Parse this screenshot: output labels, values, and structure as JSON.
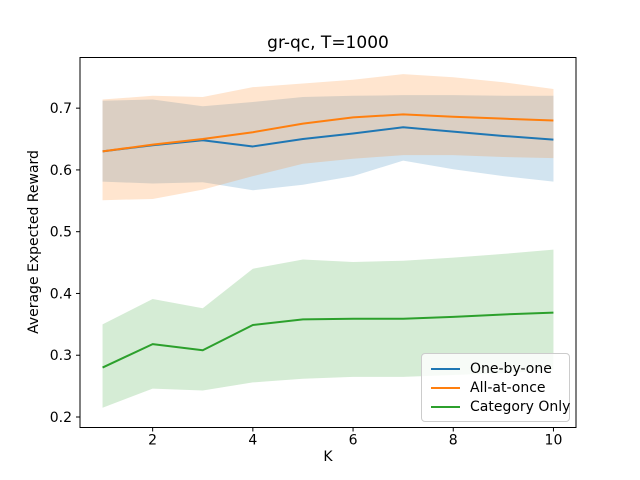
{
  "chart_data": {
    "type": "line",
    "title": "gr-qc, T=1000",
    "xlabel": "K",
    "ylabel": "Average Expected Reward",
    "grid": false,
    "legend_position": "lower right",
    "band_opacity": 0.2,
    "x": [
      1,
      2,
      3,
      4,
      5,
      6,
      7,
      8,
      9,
      10
    ],
    "xticks": [
      2,
      4,
      6,
      8,
      10
    ],
    "yticks": [
      0.2,
      0.3,
      0.4,
      0.5,
      0.6,
      0.7
    ],
    "xlim": [
      0.55,
      10.45
    ],
    "ylim": [
      0.183,
      0.782
    ],
    "series": [
      {
        "name": "One-by-one",
        "color": "#1f77b4",
        "values": [
          0.63,
          0.64,
          0.648,
          0.638,
          0.65,
          0.659,
          0.669,
          0.662,
          0.655,
          0.649
        ],
        "band_upper": [
          0.712,
          0.714,
          0.703,
          0.71,
          0.718,
          0.72,
          0.721,
          0.721,
          0.72,
          0.72
        ],
        "band_lower": [
          0.581,
          0.578,
          0.58,
          0.567,
          0.576,
          0.59,
          0.615,
          0.601,
          0.59,
          0.581
        ]
      },
      {
        "name": "All-at-once",
        "color": "#ff7f0e",
        "values": [
          0.63,
          0.641,
          0.65,
          0.661,
          0.675,
          0.685,
          0.69,
          0.686,
          0.683,
          0.68
        ],
        "band_upper": [
          0.714,
          0.72,
          0.718,
          0.734,
          0.74,
          0.746,
          0.755,
          0.75,
          0.742,
          0.731
        ],
        "band_lower": [
          0.551,
          0.553,
          0.568,
          0.59,
          0.61,
          0.618,
          0.624,
          0.624,
          0.621,
          0.619
        ]
      },
      {
        "name": "Category Only",
        "color": "#2ca02c",
        "values": [
          0.28,
          0.318,
          0.308,
          0.349,
          0.358,
          0.359,
          0.359,
          0.362,
          0.366,
          0.369
        ],
        "band_upper": [
          0.35,
          0.391,
          0.376,
          0.44,
          0.455,
          0.451,
          0.453,
          0.458,
          0.464,
          0.471
        ],
        "band_lower": [
          0.215,
          0.246,
          0.243,
          0.256,
          0.262,
          0.265,
          0.265,
          0.268,
          0.271,
          0.276
        ]
      }
    ]
  }
}
